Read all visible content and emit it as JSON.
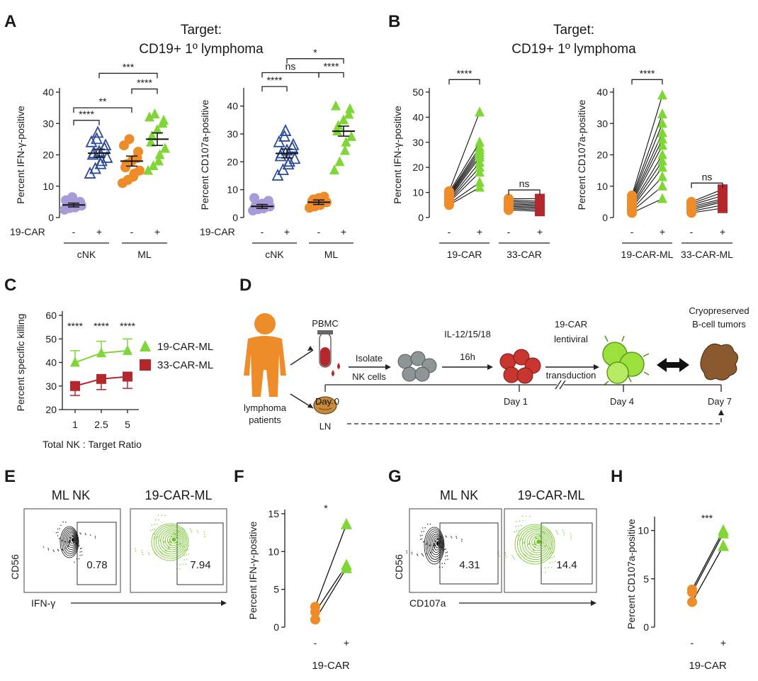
{
  "figure": {
    "panel_letters": [
      "A",
      "B",
      "C",
      "D",
      "E",
      "F",
      "G",
      "H"
    ],
    "target_title_line1": "Target:",
    "target_title_line2": "CD19+ 1º lymphoma",
    "car_row_label": "19-CAR"
  },
  "colors": {
    "cnk_minus": "#a89bd8",
    "cnk_plus": "#2e4b9a",
    "orange": "#ee8c2a",
    "green": "#7fd636",
    "red": "#b3272d",
    "flow_black": "#111111",
    "flow_green": "#6cc21e"
  },
  "chart_data": [
    {
      "id": "A1",
      "type": "scatter",
      "ylabel": "Percent IFN-γ-positive",
      "ylim": [
        0,
        40
      ],
      "yticks": [
        "0",
        "10",
        "20",
        "30",
        "40"
      ],
      "groups": [
        {
          "car": "-",
          "cell": "cNK",
          "marker": "circle",
          "color": "#a89bd8",
          "mean": 4,
          "sem": 0.6,
          "values": [
            2.5,
            3,
            3.2,
            3.5,
            3.8,
            4,
            4.2,
            4.5,
            4.8,
            5,
            5.5,
            6,
            6.5
          ]
        },
        {
          "car": "+",
          "cell": "cNK",
          "marker": "triangle-open",
          "color": "#2e4b9a",
          "mean": 20.5,
          "sem": 1.3,
          "values": [
            14,
            15.5,
            17,
            18,
            19,
            20,
            20.5,
            21,
            22,
            23,
            24,
            25,
            27
          ]
        },
        {
          "car": "-",
          "cell": "ML",
          "marker": "circle",
          "color": "#ee8c2a",
          "mean": 18,
          "sem": 1.6,
          "values": [
            11,
            12,
            13,
            14,
            15,
            16,
            17,
            18,
            19,
            21,
            23,
            25
          ]
        },
        {
          "car": "+",
          "cell": "ML",
          "marker": "triangle",
          "color": "#7fd636",
          "mean": 25,
          "sem": 2,
          "values": [
            15,
            16.5,
            18,
            20,
            22,
            24,
            26,
            28,
            30,
            31,
            32,
            33
          ]
        }
      ],
      "group_labels": [
        "cNK",
        "ML"
      ],
      "car_labels": [
        "-",
        "+",
        "-",
        "+"
      ],
      "significance": [
        {
          "from": 0,
          "to": 1,
          "label": "****",
          "y": 31
        },
        {
          "from": 0,
          "to": 2,
          "label": "**",
          "y": 35
        },
        {
          "from": 2,
          "to": 3,
          "label": "****",
          "y": 41
        },
        {
          "from": 1,
          "to": 3,
          "label": "***",
          "y": 46
        }
      ]
    },
    {
      "id": "A2",
      "type": "scatter",
      "ylabel": "Percent CD107a-positive",
      "ylim": [
        0,
        45
      ],
      "yticks": [
        "0",
        "10",
        "20",
        "30",
        "40"
      ],
      "groups": [
        {
          "car": "-",
          "cell": "cNK",
          "marker": "circle",
          "color": "#a89bd8",
          "mean": 4,
          "sem": 0.7,
          "values": [
            2.5,
            3,
            3.3,
            3.6,
            4,
            4.3,
            4.6,
            5,
            5.5,
            6,
            7
          ]
        },
        {
          "car": "+",
          "cell": "cNK",
          "marker": "triangle-open",
          "color": "#2e4b9a",
          "mean": 23,
          "sem": 1.6,
          "values": [
            15,
            17,
            19,
            20,
            21,
            22,
            23,
            24,
            25,
            26,
            27,
            29,
            31
          ]
        },
        {
          "car": "-",
          "cell": "ML",
          "marker": "circle",
          "color": "#ee8c2a",
          "mean": 5.5,
          "sem": 0.8,
          "values": [
            3.5,
            4,
            4.5,
            5,
            5.5,
            6,
            6.5,
            7,
            7.5
          ]
        },
        {
          "car": "+",
          "cell": "ML",
          "marker": "triangle",
          "color": "#7fd636",
          "mean": 31,
          "sem": 1.8,
          "values": [
            17,
            20,
            24,
            27,
            29,
            31,
            33,
            35,
            37,
            39,
            40
          ]
        }
      ],
      "group_labels": [
        "cNK",
        "ML"
      ],
      "car_labels": [
        "-",
        "+",
        "-",
        "+"
      ],
      "significance": [
        {
          "from": 0,
          "to": 1,
          "label": "****",
          "y": 47
        },
        {
          "from": 0,
          "to": 2,
          "label": "ns",
          "y": 52
        },
        {
          "from": 2,
          "to": 3,
          "label": "****",
          "y": 52
        },
        {
          "from": 1,
          "to": 3,
          "label": "*",
          "y": 57
        }
      ]
    },
    {
      "id": "B1",
      "type": "paired-line",
      "ylabel": "Percent IFN-γ-positive",
      "ylim": [
        0,
        50
      ],
      "yticks": [
        "0",
        "10",
        "20",
        "30",
        "40",
        "50"
      ],
      "pairs": [
        {
          "group": "19-CAR",
          "minus_color": "#ee8c2a",
          "plus_color": "#7fd636",
          "plus_marker": "triangle",
          "minus": [
            5,
            5.5,
            6,
            6.5,
            7,
            7.5,
            8,
            8.5,
            9,
            9.5,
            10,
            10.5
          ],
          "plus": [
            12,
            14,
            18,
            20,
            22,
            24,
            25,
            26,
            27,
            28,
            30,
            42
          ]
        },
        {
          "group": "33-CAR",
          "minus_color": "#ee8c2a",
          "plus_color": "#b3272d",
          "plus_marker": "square",
          "minus": [
            3,
            3.5,
            4,
            4.5,
            5,
            5.5,
            6,
            6.5,
            7,
            7.5
          ],
          "plus": [
            2.5,
            3,
            3.5,
            4,
            4.5,
            5,
            5.5,
            6,
            6.5,
            7.5
          ]
        }
      ],
      "group_labels": [
        "19-CAR",
        "33-CAR"
      ],
      "car_labels": [
        "-",
        "+",
        "-",
        "+"
      ],
      "significance": [
        {
          "pair": 0,
          "label": "****",
          "y": 55
        },
        {
          "pair": 1,
          "label": "ns",
          "y": 11
        }
      ]
    },
    {
      "id": "B2",
      "type": "paired-line",
      "ylabel": "Percent CD107a-positive",
      "ylim": [
        0,
        40
      ],
      "yticks": [
        "0",
        "10",
        "20",
        "30",
        "40"
      ],
      "pairs": [
        {
          "group": "19-CAR-ML",
          "minus_color": "#ee8c2a",
          "plus_color": "#7fd636",
          "plus_marker": "triangle",
          "minus": [
            1.5,
            2,
            2.5,
            3,
            3.5,
            4,
            4.5,
            5,
            5.5,
            6,
            6.5,
            7
          ],
          "plus": [
            6,
            10,
            13,
            16,
            18,
            20,
            23,
            25,
            27,
            30,
            33,
            39
          ]
        },
        {
          "group": "33-CAR-ML",
          "minus_color": "#ee8c2a",
          "plus_color": "#b3272d",
          "plus_marker": "square",
          "minus": [
            1.5,
            2,
            2.5,
            3,
            3.5,
            4,
            4.5,
            5
          ],
          "plus": [
            3,
            4,
            5,
            5.5,
            6,
            7,
            8,
            9
          ]
        }
      ],
      "group_labels": [
        "19-CAR-ML",
        "33-CAR-ML"
      ],
      "car_labels": [
        "-",
        "+",
        "-",
        "+"
      ],
      "significance": [
        {
          "pair": 0,
          "label": "****",
          "y": 44
        },
        {
          "pair": 1,
          "label": "ns",
          "y": 11
        }
      ]
    },
    {
      "id": "C",
      "type": "line",
      "ylabel": "Percent specific killing",
      "xlabel": "Total NK : Target Ratio",
      "ylim": [
        20,
        60
      ],
      "yticks": [
        "20",
        "30",
        "40",
        "50",
        "60"
      ],
      "x": [
        "1",
        "2.5",
        "5"
      ],
      "series": [
        {
          "name": "19-CAR-ML",
          "color": "#7fd636",
          "marker": "triangle",
          "values": [
            40,
            44,
            45
          ],
          "err": [
            5,
            5,
            5
          ]
        },
        {
          "name": "33-CAR-ML",
          "color": "#b3272d",
          "marker": "square",
          "values": [
            30,
            33,
            34
          ],
          "err": [
            4,
            4.5,
            5
          ]
        }
      ],
      "annotations": [
        "****",
        "****",
        "****"
      ],
      "legend": "right"
    },
    {
      "id": "F",
      "type": "paired-line",
      "ylabel": "Percent IFN-γ-positive",
      "xlabel": "19-CAR",
      "ylim": [
        0,
        15
      ],
      "yticks": [
        "0",
        "5",
        "10",
        "15"
      ],
      "car_labels": [
        "-",
        "+"
      ],
      "minus": [
        1,
        2,
        2.7
      ],
      "plus": [
        7.8,
        8.2,
        13.6
      ],
      "significance": "*"
    },
    {
      "id": "H",
      "type": "paired-line",
      "ylabel": "Percent CD107a-positive",
      "xlabel": "19-CAR",
      "ylim": [
        0,
        11
      ],
      "yticks": [
        "0",
        "5",
        "10"
      ],
      "car_labels": [
        "-",
        "+"
      ],
      "minus": [
        2.6,
        3.6,
        3.9
      ],
      "plus": [
        8.4,
        9.7,
        10
      ],
      "significance": "***"
    }
  ],
  "flow": {
    "E": {
      "labels": [
        "ML NK",
        "19-CAR-ML"
      ],
      "values": [
        "0.78",
        "7.94"
      ],
      "y_axis": "CD56",
      "x_axis": "IFN-γ"
    },
    "G": {
      "labels": [
        "ML NK",
        "19-CAR-ML"
      ],
      "values": [
        "4.31",
        "14.4"
      ],
      "y_axis": "CD56",
      "x_axis": "CD107a"
    }
  },
  "schematic": {
    "pbmc": "PBMC",
    "patients_line1": "lymphoma",
    "patients_line2": "patients",
    "ln": "LN",
    "isolate_line1": "Isolate",
    "isolate_line2": "NK cells",
    "cytokines": "IL-12/15/18",
    "duration": "16h",
    "transduction_line1": "19-CAR",
    "transduction_line2": "lentiviral",
    "transduction_line3": "transduction",
    "tumors_line1": "Cryopreserved",
    "tumors_line2": "B-cell tumors",
    "days": [
      "Day 0",
      "Day 1",
      "Day 4",
      "Day 7"
    ]
  }
}
